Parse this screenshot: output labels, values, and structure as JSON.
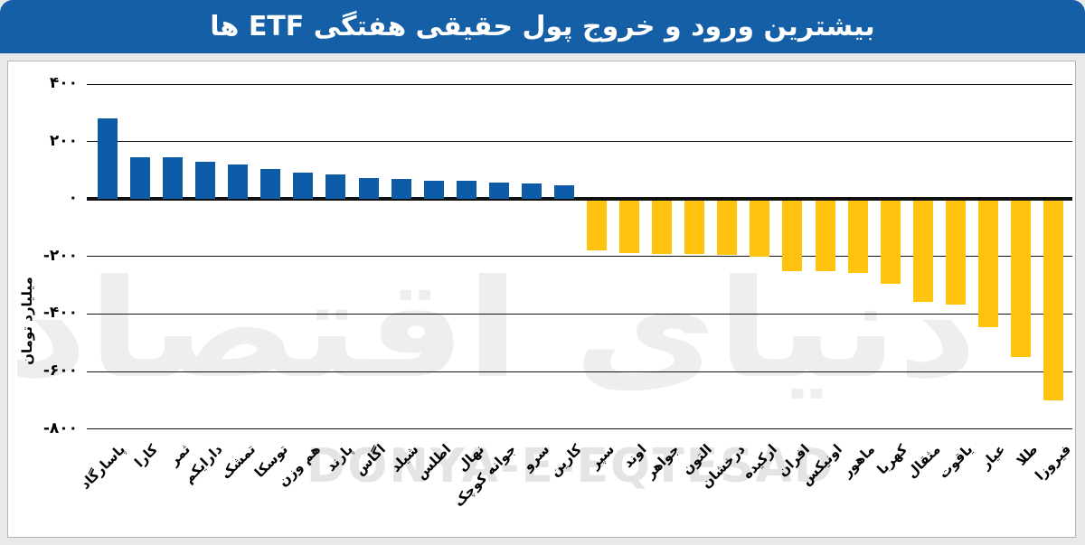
{
  "title": "بیشترین ورود و خروج پول حقیقی هفتگی ETF ها",
  "watermark": {
    "persian": "دنیای اقتصاد",
    "latin": "DONYA-E-EQTESAD"
  },
  "colors": {
    "title_bg": "#155fa6",
    "positive_bar": "#0e5ca8",
    "negative_bar": "#ffc20e",
    "gridline": "#111111",
    "panel_bg": "#ffffff",
    "page_bg": "#e9e9e9"
  },
  "y_axis": {
    "label": "میلیارد تومان",
    "ticks": [
      {
        "value": 400,
        "label": "۴۰۰"
      },
      {
        "value": 200,
        "label": "۲۰۰"
      },
      {
        "value": 0,
        "label": "۰"
      },
      {
        "value": -200,
        "label": "-۲۰۰"
      },
      {
        "value": -400,
        "label": "-۴۰۰"
      },
      {
        "value": -600,
        "label": "-۶۰۰"
      },
      {
        "value": -800,
        "label": "-۸۰۰"
      }
    ]
  },
  "chart_data": {
    "type": "bar",
    "title": "بیشترین ورود و خروج پول حقیقی هفتگی ETF ها",
    "xlabel": "",
    "ylabel": "میلیارد تومان",
    "ylim": [
      -800,
      400
    ],
    "grid": true,
    "legend": "none",
    "categories": [
      "پاسارگاد",
      "کارا",
      "ثمر",
      "دارایکم",
      "تمشک",
      "توسکا",
      "هم وزن",
      "پارند",
      "اگاس",
      "شیلد",
      "اطلس",
      "نهال",
      "جوانه کوچک",
      "سرو",
      "کارین",
      "سپر",
      "اوند",
      "جواهر",
      "التون",
      "درخشان",
      "ارکیده",
      "افران",
      "اونیکس",
      "ماهور",
      "کهربا",
      "مثقال",
      "یاقوت",
      "عیار",
      "طلا",
      "فیروزا"
    ],
    "values": [
      280,
      146,
      144,
      130,
      119,
      103,
      91,
      84,
      73,
      71,
      63,
      62,
      58,
      53,
      48,
      -180,
      -187,
      -190,
      -192,
      -193,
      -200,
      -250,
      -252,
      -256,
      -295,
      -358,
      -366,
      -445,
      -550,
      -700
    ]
  }
}
